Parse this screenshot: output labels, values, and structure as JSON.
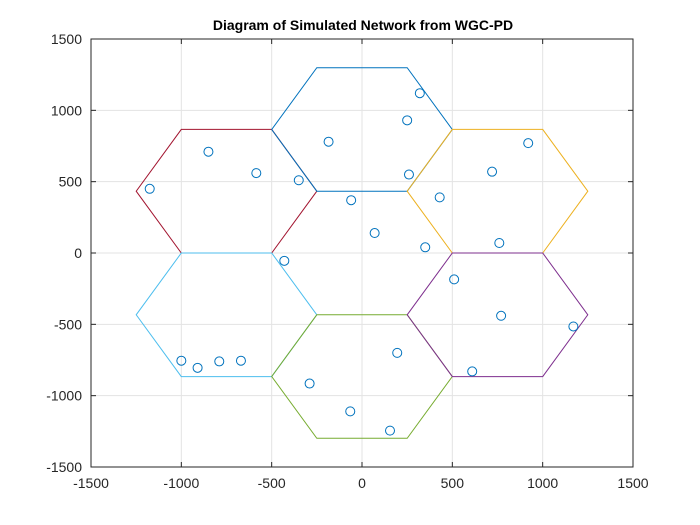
{
  "chart_data": {
    "type": "scatter",
    "title": "Diagram of Simulated Network from WGC-PD",
    "xlabel": "",
    "ylabel": "",
    "xlim": [
      -1500,
      1500
    ],
    "ylim": [
      -1500,
      1500
    ],
    "xticks": [
      -1500,
      -1000,
      -500,
      0,
      500,
      1000,
      1500
    ],
    "yticks": [
      -1500,
      -1000,
      -500,
      0,
      500,
      1000,
      1500
    ],
    "x_tick_labels": [
      "-1500",
      "-1000",
      "-500",
      "0",
      "500",
      "1000",
      "1500"
    ],
    "y_tick_labels": [
      "-1500",
      "-1000",
      "-500",
      "0",
      "500",
      "1000",
      "1500"
    ],
    "grid": true,
    "cells": [
      {
        "color": "#A2142F",
        "center": [
          -750,
          433
        ]
      },
      {
        "color": "#0072BD",
        "center": [
          0,
          866
        ]
      },
      {
        "color": "#EDB120",
        "center": [
          750,
          433
        ]
      },
      {
        "color": "#4DBEEE",
        "center": [
          -750,
          -433
        ]
      },
      {
        "color": "#77AC30",
        "center": [
          0,
          -866
        ]
      },
      {
        "color": "#7E2F8E",
        "center": [
          750,
          -433
        ]
      }
    ],
    "hex_radius": 500,
    "marker_color": "#0072BD",
    "points": [
      [
        -1175,
        450
      ],
      [
        -850,
        710
      ],
      [
        -585,
        560
      ],
      [
        -350,
        510
      ],
      [
        -185,
        780
      ],
      [
        250,
        930
      ],
      [
        320,
        1120
      ],
      [
        260,
        550
      ],
      [
        -60,
        370
      ],
      [
        70,
        140
      ],
      [
        430,
        390
      ],
      [
        350,
        40
      ],
      [
        720,
        570
      ],
      [
        920,
        770
      ],
      [
        760,
        70
      ],
      [
        -430,
        -55
      ],
      [
        510,
        -185
      ],
      [
        770,
        -440
      ],
      [
        1170,
        -515
      ],
      [
        610,
        -830
      ],
      [
        195,
        -700
      ],
      [
        -290,
        -915
      ],
      [
        -65,
        -1110
      ],
      [
        155,
        -1245
      ],
      [
        -1000,
        -755
      ],
      [
        -910,
        -805
      ],
      [
        -790,
        -760
      ],
      [
        -670,
        -755
      ]
    ]
  }
}
